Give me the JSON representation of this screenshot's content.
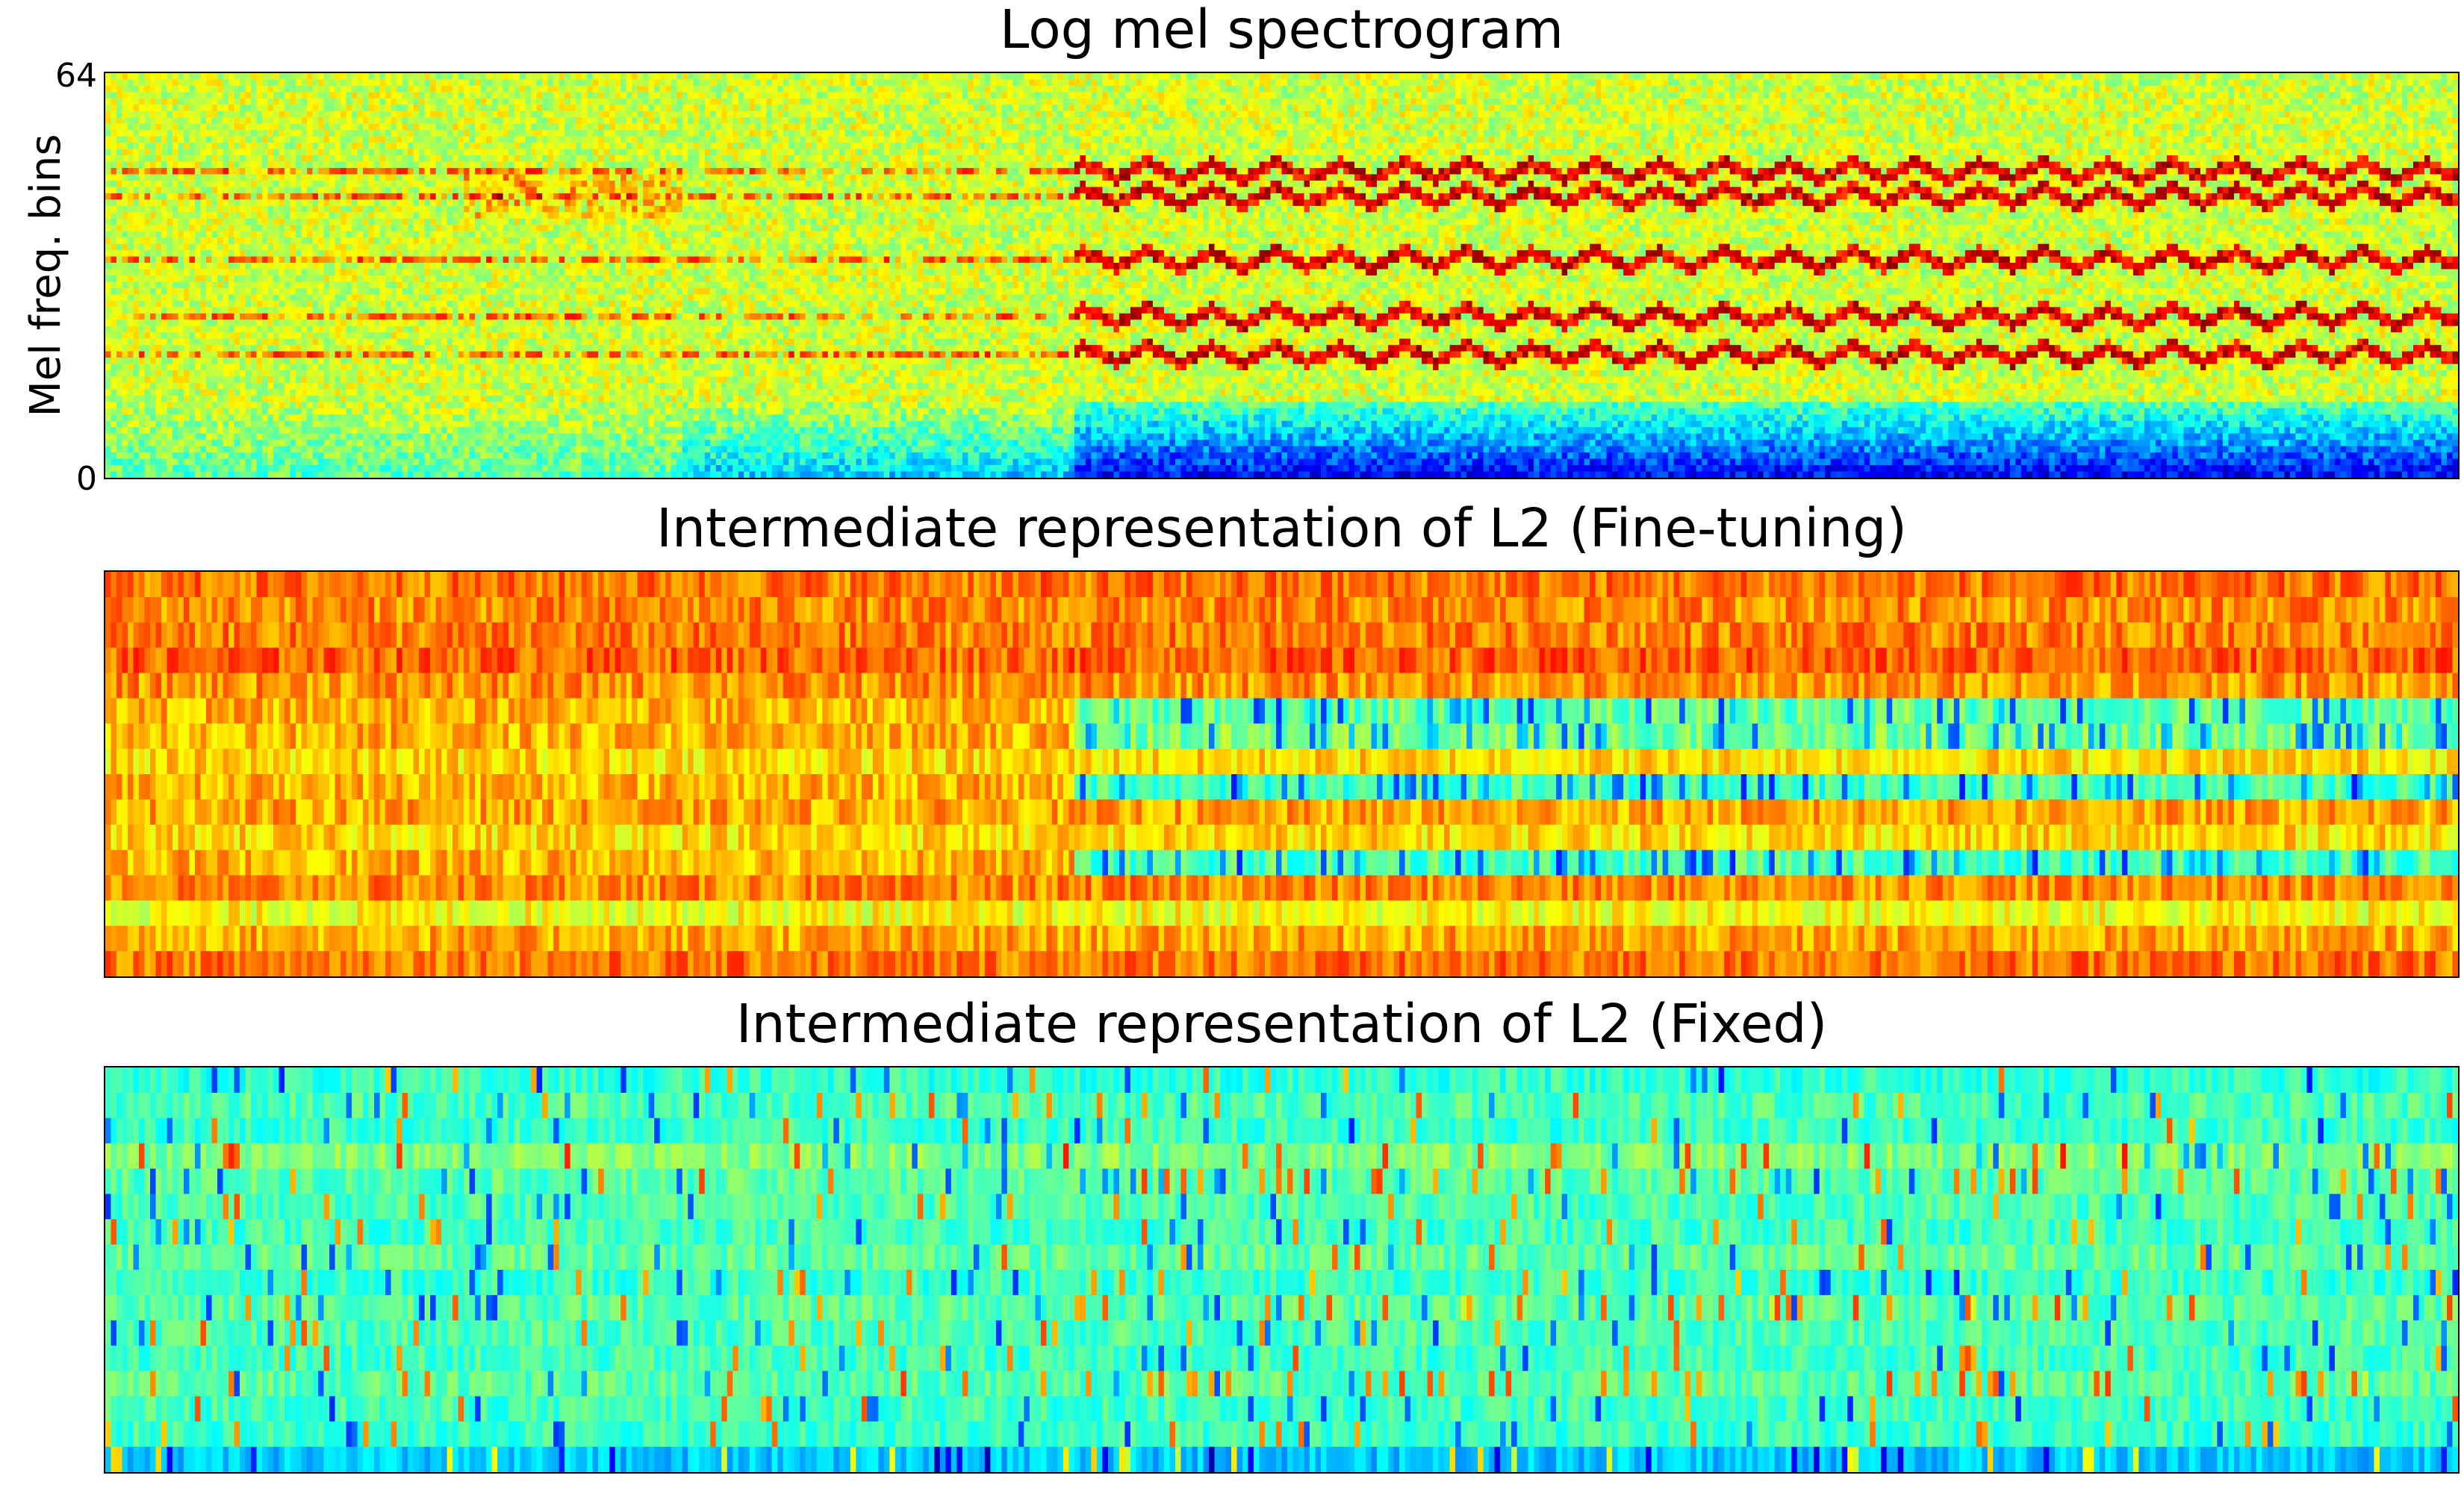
{
  "chart_data": [
    {
      "type": "heatmap",
      "title": "Log mel spectrogram",
      "ylabel": "Mel freq. bins",
      "y_ticks": [
        "0",
        "64"
      ],
      "ylim": [
        0,
        64
      ],
      "rows": 64,
      "columns": 420,
      "colormap": "jet",
      "segments_x_fraction": [
        0.15,
        0.245,
        0.41
      ],
      "harmonic_bands_after_x_fraction": 0.41,
      "harmonic_band_rows": [
        19,
        25,
        34,
        44,
        48
      ],
      "low_energy_rows": [
        0,
        12
      ],
      "colormap_colors": [
        "#00007f",
        "#0000ff",
        "#007fff",
        "#00ffff",
        "#7fff7f",
        "#ffff00",
        "#ff7f00",
        "#ff0000",
        "#7f0000"
      ]
    },
    {
      "type": "heatmap",
      "title": "Intermediate representation of L2 (Fine-tuning)",
      "rows": 16,
      "columns": 420,
      "colormap": "jet",
      "value_range": [
        0,
        1
      ],
      "row_means": [
        0.76,
        0.74,
        0.75,
        0.78,
        0.73,
        0.47,
        0.49,
        0.66,
        0.44,
        0.71,
        0.66,
        0.45,
        0.74,
        0.62,
        0.71,
        0.76
      ],
      "low_rows_after_x_fraction": 0.41
    },
    {
      "type": "heatmap",
      "title": "Intermediate representation of L2 (Fixed)",
      "rows": 16,
      "columns": 420,
      "colormap": "jet",
      "value_range": [
        0,
        1
      ],
      "row_means": [
        0.42,
        0.45,
        0.43,
        0.5,
        0.46,
        0.45,
        0.44,
        0.47,
        0.43,
        0.46,
        0.45,
        0.44,
        0.46,
        0.44,
        0.43,
        0.32
      ],
      "spike_rows": [
        4,
        9,
        12
      ]
    }
  ]
}
